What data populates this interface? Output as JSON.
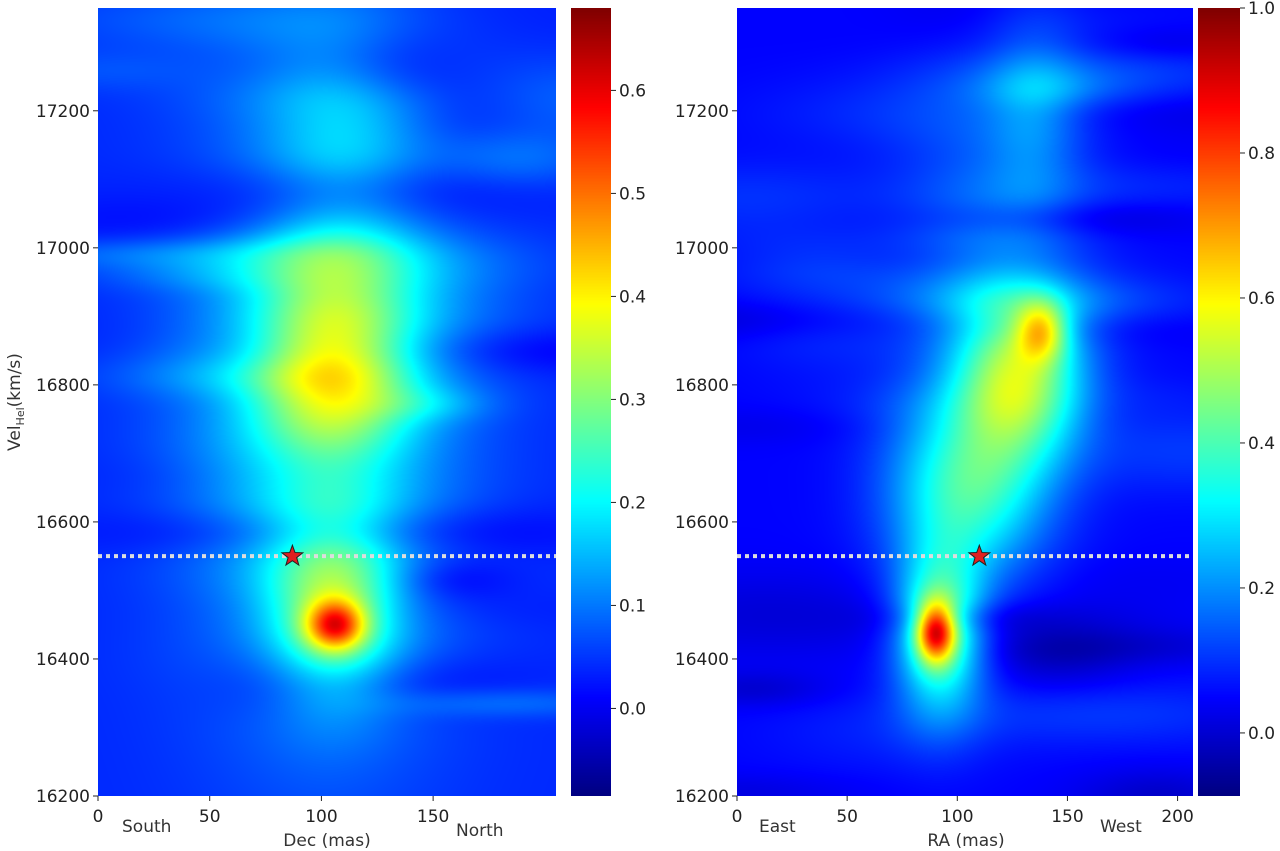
{
  "chart_data": [
    {
      "type": "heatmap",
      "panel": "left",
      "xlabel": "Dec (mas)",
      "ylabel_main": "Vel",
      "ylabel_sub": "Hel",
      "ylabel_unit": "(km/s)",
      "x_annotations": [
        "South",
        "North"
      ],
      "xlim": [
        0,
        205
      ],
      "ylim": [
        16200,
        17350
      ],
      "xticks": [
        0,
        50,
        100,
        150
      ],
      "yticks": [
        16200,
        16400,
        16600,
        16800,
        17000,
        17200
      ],
      "colorbar": {
        "range": [
          -0.085,
          0.68
        ],
        "ticks": [
          "0.0",
          "0.1",
          "0.2",
          "0.3",
          "0.4",
          "0.5",
          "0.6"
        ],
        "tick_values": [
          0,
          0.1,
          0.2,
          0.3,
          0.4,
          0.5,
          0.6
        ],
        "colormap": "jet"
      },
      "reference_velocity": 16550,
      "star": {
        "x": 87,
        "y": 16550
      },
      "background": 0.04,
      "features": [
        {
          "x": 100,
          "y": 16750,
          "sx": 42,
          "sy": 300,
          "amp": 0.15
        },
        {
          "x": 105,
          "y": 16810,
          "sx": 24,
          "sy": 110,
          "amp": 0.2
        },
        {
          "x": 105,
          "y": 16470,
          "sx": 20,
          "sy": 90,
          "amp": 0.2
        },
        {
          "x": 106,
          "y": 16450,
          "sx": 9,
          "sy": 25,
          "amp": 0.3
        },
        {
          "x": 110,
          "y": 17100,
          "sx": 25,
          "sy": 150,
          "amp": 0.08
        }
      ]
    },
    {
      "type": "heatmap",
      "panel": "right",
      "xlabel": "RA (mas)",
      "x_annotations": [
        "East",
        "West"
      ],
      "xlim": [
        0,
        207
      ],
      "ylim": [
        16200,
        17350
      ],
      "xticks": [
        0,
        50,
        100,
        150,
        200
      ],
      "yticks": [
        16200,
        16400,
        16600,
        16800,
        17000,
        17200
      ],
      "colorbar": {
        "range": [
          -0.087,
          1.0
        ],
        "ticks": [
          "0.0",
          "0.2",
          "0.4",
          "0.6",
          "0.8",
          "1.0"
        ],
        "tick_values": [
          0,
          0.2,
          0.4,
          0.6,
          0.8,
          1.0
        ],
        "colormap": "jet"
      },
      "reference_velocity": 16550,
      "star": {
        "x": 110,
        "y": 16550
      },
      "background": 0.05,
      "features": [
        {
          "x": 92,
          "y": 16440,
          "sx": 14,
          "sy": 80,
          "amp": 0.4
        },
        {
          "x": 90,
          "y": 16440,
          "sx": 6,
          "sy": 30,
          "amp": 0.5
        },
        {
          "x": 105,
          "y": 16650,
          "sx": 25,
          "sy": 90,
          "amp": 0.33
        },
        {
          "x": 128,
          "y": 16810,
          "sx": 20,
          "sy": 80,
          "amp": 0.4
        },
        {
          "x": 138,
          "y": 16880,
          "sx": 8,
          "sy": 30,
          "amp": 0.3
        },
        {
          "x": 115,
          "y": 17000,
          "sx": 30,
          "sy": 150,
          "amp": 0.12
        },
        {
          "x": 135,
          "y": 17200,
          "sx": 15,
          "sy": 100,
          "amp": 0.1
        }
      ]
    }
  ]
}
